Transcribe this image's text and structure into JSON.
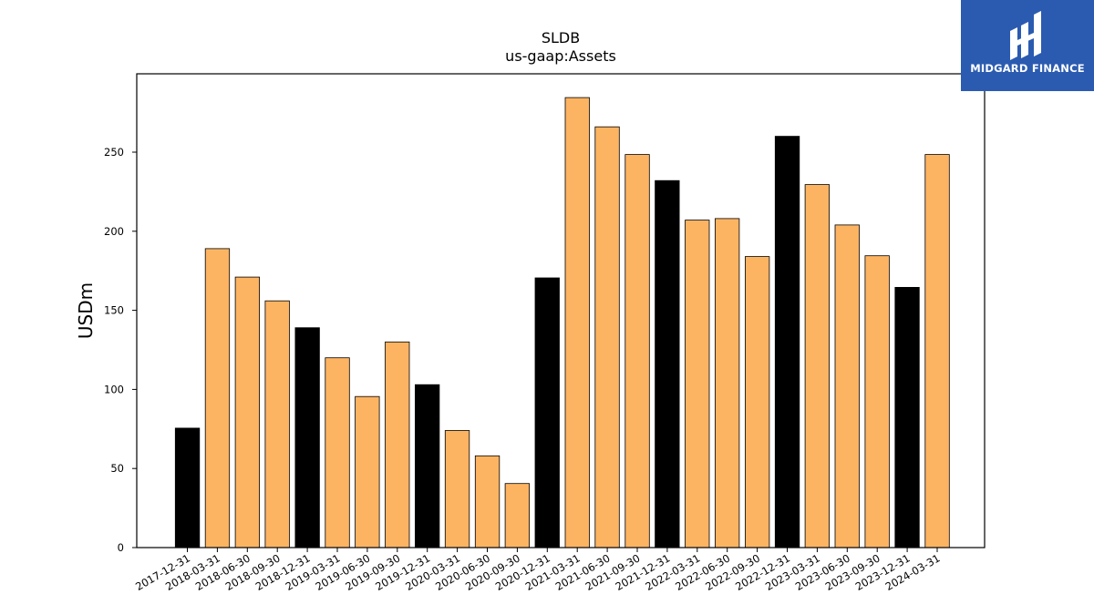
{
  "chart_data": {
    "type": "bar",
    "title": "SLDB",
    "subtitle": "us-gaap:Assets",
    "xlabel": "",
    "ylabel": "USDm",
    "ylim": [
      0,
      300
    ],
    "yticks": [
      0,
      50,
      100,
      150,
      200,
      250
    ],
    "grid": false,
    "categories": [
      "2017-12-31",
      "2018-03-31",
      "2018-06-30",
      "2018-09-30",
      "2018-12-31",
      "2019-03-31",
      "2019-06-30",
      "2019-09-30",
      "2019-12-31",
      "2020-03-31",
      "2020-06-30",
      "2020-09-30",
      "2020-12-31",
      "2021-03-31",
      "2021-06-30",
      "2021-09-30",
      "2021-12-31",
      "2022-03-31",
      "2022-06-30",
      "2022-09-30",
      "2022-12-31",
      "2023-03-31",
      "2023-06-30",
      "2023-09-30",
      "2023-12-31",
      "2024-03-31"
    ],
    "values": [
      75.5,
      189,
      171,
      156,
      139,
      120,
      95.5,
      130,
      103,
      74,
      58,
      40.5,
      170.5,
      284.5,
      266,
      248.5,
      232,
      207,
      208,
      184,
      260,
      229.5,
      204,
      184.5,
      164.5,
      248.5
    ],
    "bar_colors": [
      "#000000",
      "#fdb462",
      "#fdb462",
      "#fdb462",
      "#000000",
      "#fdb462",
      "#fdb462",
      "#fdb462",
      "#000000",
      "#fdb462",
      "#fdb462",
      "#fdb462",
      "#000000",
      "#fdb462",
      "#fdb462",
      "#fdb462",
      "#000000",
      "#fdb462",
      "#fdb462",
      "#fdb462",
      "#000000",
      "#fdb462",
      "#fdb462",
      "#fdb462",
      "#000000",
      "#fdb462"
    ]
  },
  "logo": {
    "text": "MIDGARD FINANCE",
    "background": "#2b5bb0"
  }
}
